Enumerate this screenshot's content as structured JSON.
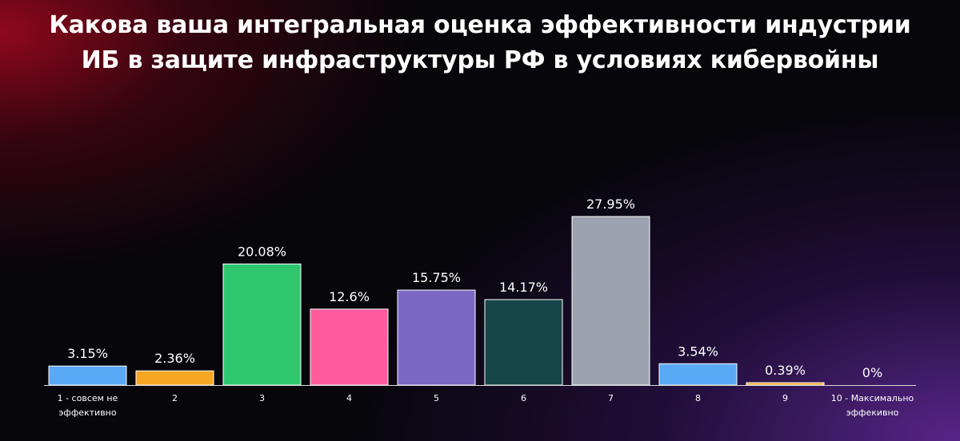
{
  "chart_data": {
    "type": "bar",
    "title": [
      "Какова ваша интегральная оценка эффективности индустрии",
      "ИБ в защите инфраструктуры РФ в условиях кибервойны"
    ],
    "categories": [
      [
        "1 - совсем не",
        "эффективно"
      ],
      [
        "2"
      ],
      [
        "3"
      ],
      [
        "4"
      ],
      [
        "5"
      ],
      [
        "6"
      ],
      [
        "7"
      ],
      [
        "8"
      ],
      [
        "9"
      ],
      [
        "10 - Максимально",
        "эффекивно"
      ]
    ],
    "values": [
      3.15,
      2.36,
      20.08,
      12.6,
      15.75,
      14.17,
      27.95,
      3.54,
      0.39,
      0
    ],
    "value_labels": [
      "3.15%",
      "2.36%",
      "20.08%",
      "12.6%",
      "15.75%",
      "14.17%",
      "27.95%",
      "3.54%",
      "0.39%",
      "0%"
    ],
    "colors": [
      "#5aa9f5",
      "#f5a623",
      "#2ec770",
      "#ff5c9d",
      "#7b68c4",
      "#16464a",
      "#9ca3af",
      "#5aa9f5",
      "#f5a623",
      "#2ec770"
    ],
    "ylim": [
      0,
      30
    ],
    "grid": false,
    "legend": "none"
  }
}
